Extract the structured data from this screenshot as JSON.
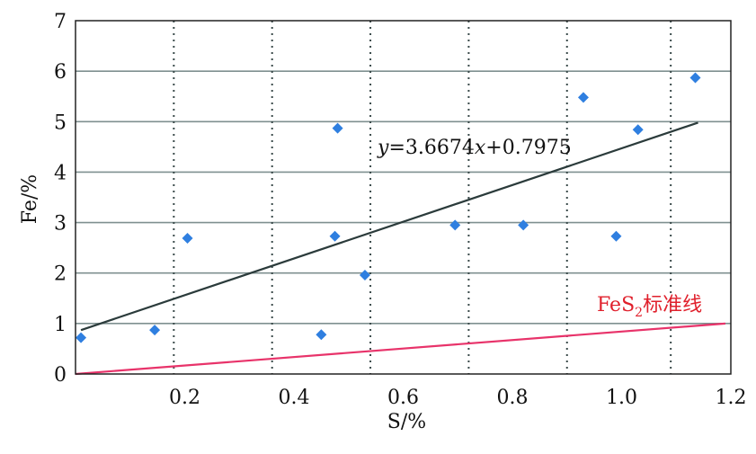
{
  "chart_data": {
    "type": "scatter",
    "xlabel": "S/%",
    "ylabel": "Fe/%",
    "xlim": [
      0,
      1.2
    ],
    "ylim": [
      0,
      7
    ],
    "x_ticks": [
      "0.2",
      "0.4",
      "0.6",
      "0.8",
      "1.0",
      "1.2"
    ],
    "y_ticks": [
      "0",
      "1",
      "2",
      "3",
      "4",
      "5",
      "6",
      "7"
    ],
    "x_gridlines": [
      0.18,
      0.36,
      0.54,
      0.72,
      0.9,
      1.09
    ],
    "series": [
      {
        "type": "scatter",
        "color": "#2f7fe0",
        "marker": "diamond",
        "points": [
          {
            "x": 0.01,
            "y": 0.72
          },
          {
            "x": 0.145,
            "y": 0.87
          },
          {
            "x": 0.205,
            "y": 2.69
          },
          {
            "x": 0.45,
            "y": 0.78
          },
          {
            "x": 0.475,
            "y": 2.73
          },
          {
            "x": 0.48,
            "y": 4.87
          },
          {
            "x": 0.53,
            "y": 1.96
          },
          {
            "x": 0.695,
            "y": 2.95
          },
          {
            "x": 0.82,
            "y": 2.95
          },
          {
            "x": 0.93,
            "y": 5.48
          },
          {
            "x": 0.99,
            "y": 2.73
          },
          {
            "x": 1.03,
            "y": 4.84
          },
          {
            "x": 1.135,
            "y": 5.87
          }
        ]
      },
      {
        "type": "line",
        "color": "#2b3b3b",
        "points": [
          {
            "x": 0.01,
            "y": 0.87
          },
          {
            "x": 1.14,
            "y": 4.98
          }
        ],
        "label": "y=3.6674x+0.7975"
      },
      {
        "type": "line",
        "color": "#e8336a",
        "points": [
          {
            "x": 0.0,
            "y": 0.0
          },
          {
            "x": 1.19,
            "y": 1.0
          }
        ],
        "label_main": "FeS",
        "label_sub": "2",
        "label_suffix": "标准线"
      }
    ]
  }
}
